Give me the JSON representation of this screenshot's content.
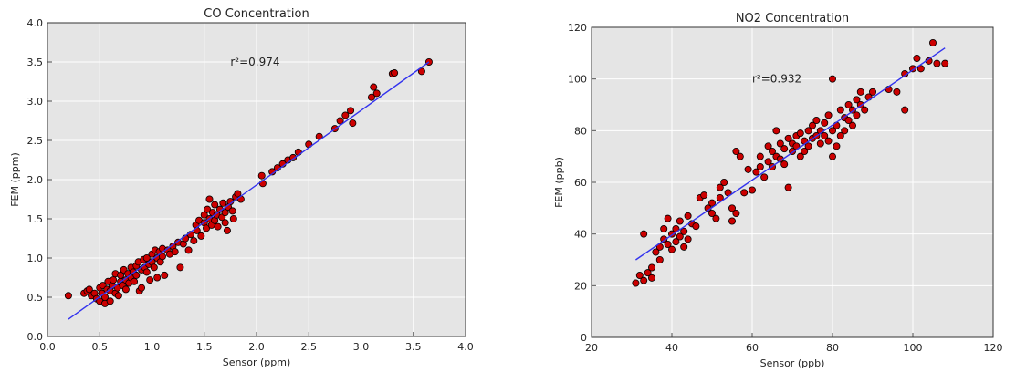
{
  "chart_data": [
    {
      "type": "scatter",
      "title": "CO Concentration",
      "xlabel": "Sensor (ppm)",
      "ylabel": "FEM (ppm)",
      "xlim": [
        0.0,
        4.0
      ],
      "ylim": [
        0.0,
        4.0
      ],
      "xticks": [
        "0.0",
        "0.5",
        "1.0",
        "1.5",
        "2.0",
        "2.5",
        "3.0",
        "3.5",
        "4.0"
      ],
      "yticks": [
        "0.0",
        "0.5",
        "1.0",
        "1.5",
        "2.0",
        "2.5",
        "3.0",
        "3.5",
        "4.0"
      ],
      "annotation": {
        "text": "r²=0.974",
        "x": 1.75,
        "y": 3.5
      },
      "grid": true,
      "point_color": "#cc0000",
      "fit_color": "#3333ee",
      "fit_line": {
        "x": [
          0.2,
          3.65
        ],
        "y": [
          0.22,
          3.5
        ]
      },
      "points": [
        [
          0.2,
          0.52
        ],
        [
          0.35,
          0.55
        ],
        [
          0.38,
          0.58
        ],
        [
          0.4,
          0.6
        ],
        [
          0.42,
          0.52
        ],
        [
          0.45,
          0.55
        ],
        [
          0.47,
          0.48
        ],
        [
          0.5,
          0.62
        ],
        [
          0.5,
          0.45
        ],
        [
          0.52,
          0.55
        ],
        [
          0.53,
          0.65
        ],
        [
          0.55,
          0.5
        ],
        [
          0.55,
          0.42
        ],
        [
          0.57,
          0.6
        ],
        [
          0.58,
          0.7
        ],
        [
          0.6,
          0.58
        ],
        [
          0.6,
          0.45
        ],
        [
          0.62,
          0.65
        ],
        [
          0.63,
          0.72
        ],
        [
          0.65,
          0.55
        ],
        [
          0.65,
          0.8
        ],
        [
          0.67,
          0.62
        ],
        [
          0.68,
          0.52
        ],
        [
          0.7,
          0.7
        ],
        [
          0.7,
          0.78
        ],
        [
          0.72,
          0.65
        ],
        [
          0.73,
          0.85
        ],
        [
          0.75,
          0.72
        ],
        [
          0.75,
          0.6
        ],
        [
          0.77,
          0.8
        ],
        [
          0.78,
          0.68
        ],
        [
          0.8,
          0.88
        ],
        [
          0.8,
          0.75
        ],
        [
          0.82,
          0.82
        ],
        [
          0.83,
          0.7
        ],
        [
          0.85,
          0.9
        ],
        [
          0.85,
          0.78
        ],
        [
          0.87,
          0.95
        ],
        [
          0.88,
          0.58
        ],
        [
          0.9,
          0.85
        ],
        [
          0.9,
          0.62
        ],
        [
          0.92,
          0.98
        ],
        [
          0.93,
          0.88
        ],
        [
          0.95,
          1.0
        ],
        [
          0.95,
          0.82
        ],
        [
          0.97,
          0.92
        ],
        [
          0.98,
          0.72
        ],
        [
          1.0,
          1.05
        ],
        [
          1.0,
          0.95
        ],
        [
          1.02,
          0.88
        ],
        [
          1.03,
          1.1
        ],
        [
          1.05,
          1.0
        ],
        [
          1.05,
          0.75
        ],
        [
          1.07,
          1.08
        ],
        [
          1.08,
          0.95
        ],
        [
          1.1,
          1.12
        ],
        [
          1.1,
          1.02
        ],
        [
          1.12,
          0.78
        ],
        [
          1.15,
          1.1
        ],
        [
          1.17,
          1.05
        ],
        [
          1.2,
          1.15
        ],
        [
          1.22,
          1.08
        ],
        [
          1.25,
          1.2
        ],
        [
          1.27,
          0.88
        ],
        [
          1.3,
          1.18
        ],
        [
          1.32,
          1.25
        ],
        [
          1.35,
          1.1
        ],
        [
          1.37,
          1.3
        ],
        [
          1.4,
          1.22
        ],
        [
          1.42,
          1.42
        ],
        [
          1.43,
          1.35
        ],
        [
          1.45,
          1.48
        ],
        [
          1.47,
          1.28
        ],
        [
          1.5,
          1.45
        ],
        [
          1.5,
          1.55
        ],
        [
          1.52,
          1.38
        ],
        [
          1.53,
          1.62
        ],
        [
          1.55,
          1.5
        ],
        [
          1.55,
          1.75
        ],
        [
          1.57,
          1.42
        ],
        [
          1.58,
          1.58
        ],
        [
          1.6,
          1.48
        ],
        [
          1.6,
          1.68
        ],
        [
          1.62,
          1.55
        ],
        [
          1.63,
          1.4
        ],
        [
          1.65,
          1.62
        ],
        [
          1.67,
          1.52
        ],
        [
          1.68,
          1.7
        ],
        [
          1.7,
          1.45
        ],
        [
          1.7,
          1.58
        ],
        [
          1.72,
          1.35
        ],
        [
          1.73,
          1.65
        ],
        [
          1.75,
          1.72
        ],
        [
          1.77,
          1.6
        ],
        [
          1.78,
          1.5
        ],
        [
          1.8,
          1.78
        ],
        [
          1.82,
          1.82
        ],
        [
          1.85,
          1.75
        ],
        [
          2.05,
          2.05
        ],
        [
          2.06,
          1.95
        ],
        [
          2.15,
          2.1
        ],
        [
          2.2,
          2.15
        ],
        [
          2.25,
          2.2
        ],
        [
          2.3,
          2.25
        ],
        [
          2.35,
          2.28
        ],
        [
          2.4,
          2.35
        ],
        [
          2.5,
          2.45
        ],
        [
          2.6,
          2.55
        ],
        [
          2.75,
          2.65
        ],
        [
          2.8,
          2.75
        ],
        [
          2.85,
          2.82
        ],
        [
          2.9,
          2.88
        ],
        [
          2.92,
          2.72
        ],
        [
          3.1,
          3.05
        ],
        [
          3.12,
          3.18
        ],
        [
          3.15,
          3.1
        ],
        [
          3.3,
          3.35
        ],
        [
          3.32,
          3.36
        ],
        [
          3.58,
          3.38
        ],
        [
          3.65,
          3.5
        ]
      ]
    },
    {
      "type": "scatter",
      "title": "NO2 Concentration",
      "xlabel": "Sensor (ppb)",
      "ylabel": "FEM (ppb)",
      "xlim": [
        20,
        120
      ],
      "ylim": [
        0,
        120
      ],
      "xticks": [
        "20",
        "40",
        "60",
        "80",
        "100",
        "120"
      ],
      "yticks": [
        "0",
        "20",
        "40",
        "60",
        "80",
        "100",
        "120"
      ],
      "annotation": {
        "text": "r²=0.932",
        "x": 60,
        "y": 100
      },
      "grid": true,
      "point_color": "#cc0000",
      "fit_color": "#3333ee",
      "fit_line": {
        "x": [
          31,
          108
        ],
        "y": [
          30,
          112
        ]
      },
      "points": [
        [
          31,
          21
        ],
        [
          32,
          24
        ],
        [
          33,
          22
        ],
        [
          34,
          25
        ],
        [
          33,
          40
        ],
        [
          35,
          27
        ],
        [
          35,
          23
        ],
        [
          36,
          33
        ],
        [
          37,
          35
        ],
        [
          37,
          30
        ],
        [
          38,
          38
        ],
        [
          38,
          42
        ],
        [
          39,
          36
        ],
        [
          39,
          46
        ],
        [
          40,
          40
        ],
        [
          40,
          34
        ],
        [
          41,
          42
        ],
        [
          41,
          37
        ],
        [
          42,
          45
        ],
        [
          42,
          39
        ],
        [
          43,
          41
        ],
        [
          43,
          35
        ],
        [
          44,
          47
        ],
        [
          44,
          38
        ],
        [
          45,
          44
        ],
        [
          46,
          43
        ],
        [
          47,
          54
        ],
        [
          48,
          55
        ],
        [
          49,
          50
        ],
        [
          50,
          48
        ],
        [
          50,
          52
        ],
        [
          51,
          46
        ],
        [
          52,
          58
        ],
        [
          52,
          54
        ],
        [
          53,
          60
        ],
        [
          54,
          56
        ],
        [
          55,
          45
        ],
        [
          55,
          50
        ],
        [
          56,
          48
        ],
        [
          56,
          72
        ],
        [
          57,
          70
        ],
        [
          58,
          56
        ],
        [
          59,
          65
        ],
        [
          60,
          57
        ],
        [
          61,
          64
        ],
        [
          62,
          66
        ],
        [
          62,
          70
        ],
        [
          63,
          62
        ],
        [
          64,
          68
        ],
        [
          64,
          74
        ],
        [
          65,
          72
        ],
        [
          65,
          66
        ],
        [
          66,
          80
        ],
        [
          66,
          70
        ],
        [
          67,
          69
        ],
        [
          67,
          75
        ],
        [
          68,
          73
        ],
        [
          68,
          67
        ],
        [
          69,
          58
        ],
        [
          69,
          77
        ],
        [
          70,
          72
        ],
        [
          70,
          75
        ],
        [
          71,
          74
        ],
        [
          71,
          78
        ],
        [
          72,
          70
        ],
        [
          72,
          79
        ],
        [
          73,
          76
        ],
        [
          73,
          72
        ],
        [
          74,
          80
        ],
        [
          74,
          74
        ],
        [
          75,
          82
        ],
        [
          75,
          77
        ],
        [
          76,
          78
        ],
        [
          76,
          84
        ],
        [
          77,
          80
        ],
        [
          77,
          75
        ],
        [
          78,
          83
        ],
        [
          78,
          78
        ],
        [
          79,
          76
        ],
        [
          79,
          86
        ],
        [
          80,
          80
        ],
        [
          80,
          70
        ],
        [
          80,
          100
        ],
        [
          81,
          82
        ],
        [
          81,
          74
        ],
        [
          82,
          78
        ],
        [
          82,
          88
        ],
        [
          83,
          85
        ],
        [
          83,
          80
        ],
        [
          84,
          90
        ],
        [
          84,
          84
        ],
        [
          85,
          88
        ],
        [
          85,
          82
        ],
        [
          86,
          92
        ],
        [
          86,
          86
        ],
        [
          87,
          90
        ],
        [
          87,
          95
        ],
        [
          88,
          88
        ],
        [
          89,
          93
        ],
        [
          90,
          95
        ],
        [
          94,
          96
        ],
        [
          96,
          95
        ],
        [
          98,
          88
        ],
        [
          98,
          102
        ],
        [
          100,
          104
        ],
        [
          101,
          108
        ],
        [
          102,
          104
        ],
        [
          104,
          107
        ],
        [
          105,
          114
        ],
        [
          106,
          106
        ],
        [
          108,
          106
        ]
      ]
    }
  ]
}
